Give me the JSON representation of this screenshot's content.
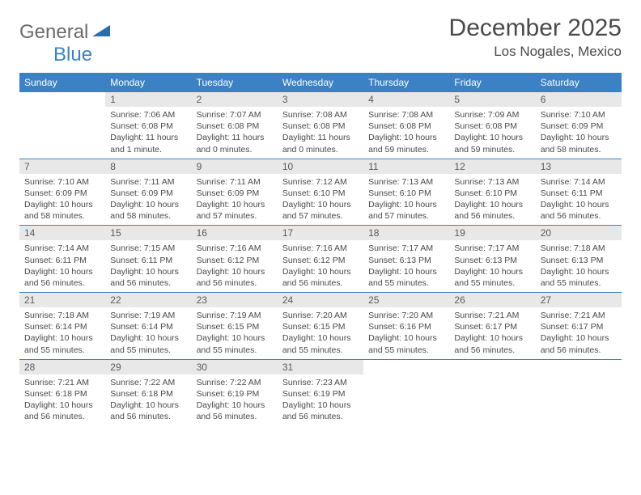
{
  "logo": {
    "part1": "General",
    "part2": "Blue"
  },
  "title": "December 2025",
  "location": "Los Nogales, Mexico",
  "colors": {
    "header_bg": "#3b82c4",
    "header_text": "#ffffff",
    "daynum_bg": "#e8e8e8",
    "daynum_text": "#5a5a5a",
    "rule": "#3b82c4",
    "body_text": "#4a4a4a"
  },
  "weekdays": [
    "Sunday",
    "Monday",
    "Tuesday",
    "Wednesday",
    "Thursday",
    "Friday",
    "Saturday"
  ],
  "weeks": [
    [
      null,
      {
        "n": "1",
        "sr": "7:06 AM",
        "ss": "6:08 PM",
        "dl": "11 hours and 1 minute."
      },
      {
        "n": "2",
        "sr": "7:07 AM",
        "ss": "6:08 PM",
        "dl": "11 hours and 0 minutes."
      },
      {
        "n": "3",
        "sr": "7:08 AM",
        "ss": "6:08 PM",
        "dl": "11 hours and 0 minutes."
      },
      {
        "n": "4",
        "sr": "7:08 AM",
        "ss": "6:08 PM",
        "dl": "10 hours and 59 minutes."
      },
      {
        "n": "5",
        "sr": "7:09 AM",
        "ss": "6:08 PM",
        "dl": "10 hours and 59 minutes."
      },
      {
        "n": "6",
        "sr": "7:10 AM",
        "ss": "6:09 PM",
        "dl": "10 hours and 58 minutes."
      }
    ],
    [
      {
        "n": "7",
        "sr": "7:10 AM",
        "ss": "6:09 PM",
        "dl": "10 hours and 58 minutes."
      },
      {
        "n": "8",
        "sr": "7:11 AM",
        "ss": "6:09 PM",
        "dl": "10 hours and 58 minutes."
      },
      {
        "n": "9",
        "sr": "7:11 AM",
        "ss": "6:09 PM",
        "dl": "10 hours and 57 minutes."
      },
      {
        "n": "10",
        "sr": "7:12 AM",
        "ss": "6:10 PM",
        "dl": "10 hours and 57 minutes."
      },
      {
        "n": "11",
        "sr": "7:13 AM",
        "ss": "6:10 PM",
        "dl": "10 hours and 57 minutes."
      },
      {
        "n": "12",
        "sr": "7:13 AM",
        "ss": "6:10 PM",
        "dl": "10 hours and 56 minutes."
      },
      {
        "n": "13",
        "sr": "7:14 AM",
        "ss": "6:11 PM",
        "dl": "10 hours and 56 minutes."
      }
    ],
    [
      {
        "n": "14",
        "sr": "7:14 AM",
        "ss": "6:11 PM",
        "dl": "10 hours and 56 minutes."
      },
      {
        "n": "15",
        "sr": "7:15 AM",
        "ss": "6:11 PM",
        "dl": "10 hours and 56 minutes."
      },
      {
        "n": "16",
        "sr": "7:16 AM",
        "ss": "6:12 PM",
        "dl": "10 hours and 56 minutes."
      },
      {
        "n": "17",
        "sr": "7:16 AM",
        "ss": "6:12 PM",
        "dl": "10 hours and 56 minutes."
      },
      {
        "n": "18",
        "sr": "7:17 AM",
        "ss": "6:13 PM",
        "dl": "10 hours and 55 minutes."
      },
      {
        "n": "19",
        "sr": "7:17 AM",
        "ss": "6:13 PM",
        "dl": "10 hours and 55 minutes."
      },
      {
        "n": "20",
        "sr": "7:18 AM",
        "ss": "6:13 PM",
        "dl": "10 hours and 55 minutes."
      }
    ],
    [
      {
        "n": "21",
        "sr": "7:18 AM",
        "ss": "6:14 PM",
        "dl": "10 hours and 55 minutes."
      },
      {
        "n": "22",
        "sr": "7:19 AM",
        "ss": "6:14 PM",
        "dl": "10 hours and 55 minutes."
      },
      {
        "n": "23",
        "sr": "7:19 AM",
        "ss": "6:15 PM",
        "dl": "10 hours and 55 minutes."
      },
      {
        "n": "24",
        "sr": "7:20 AM",
        "ss": "6:15 PM",
        "dl": "10 hours and 55 minutes."
      },
      {
        "n": "25",
        "sr": "7:20 AM",
        "ss": "6:16 PM",
        "dl": "10 hours and 55 minutes."
      },
      {
        "n": "26",
        "sr": "7:21 AM",
        "ss": "6:17 PM",
        "dl": "10 hours and 56 minutes."
      },
      {
        "n": "27",
        "sr": "7:21 AM",
        "ss": "6:17 PM",
        "dl": "10 hours and 56 minutes."
      }
    ],
    [
      {
        "n": "28",
        "sr": "7:21 AM",
        "ss": "6:18 PM",
        "dl": "10 hours and 56 minutes."
      },
      {
        "n": "29",
        "sr": "7:22 AM",
        "ss": "6:18 PM",
        "dl": "10 hours and 56 minutes."
      },
      {
        "n": "30",
        "sr": "7:22 AM",
        "ss": "6:19 PM",
        "dl": "10 hours and 56 minutes."
      },
      {
        "n": "31",
        "sr": "7:23 AM",
        "ss": "6:19 PM",
        "dl": "10 hours and 56 minutes."
      },
      null,
      null,
      null
    ]
  ],
  "labels": {
    "sunrise": "Sunrise:",
    "sunset": "Sunset:",
    "daylight": "Daylight:"
  }
}
